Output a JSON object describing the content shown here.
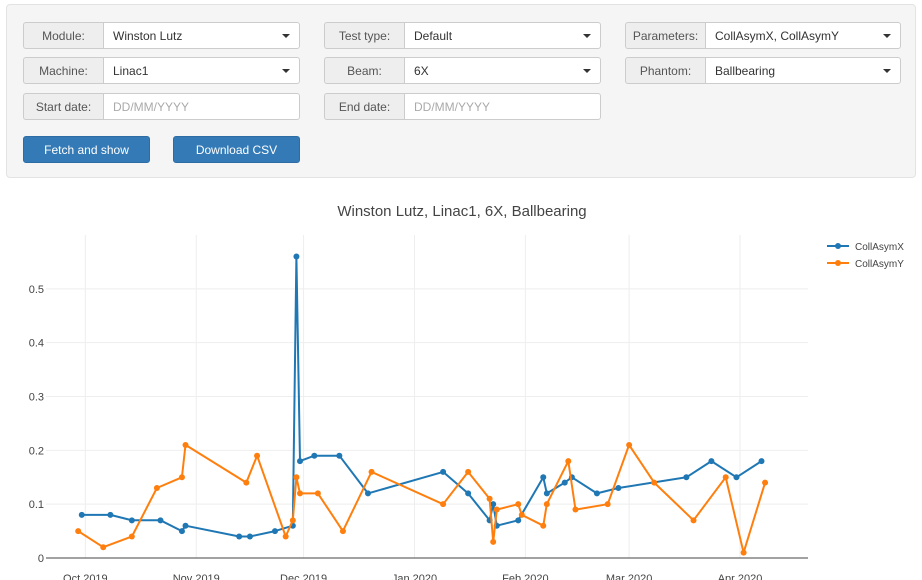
{
  "form": {
    "module": {
      "label": "Module:",
      "value": "Winston Lutz"
    },
    "test_type": {
      "label": "Test type:",
      "value": "Default"
    },
    "parameters": {
      "label": "Parameters:",
      "value": "CollAsymX, CollAsymY"
    },
    "machine": {
      "label": "Machine:",
      "value": "Linac1"
    },
    "beam": {
      "label": "Beam:",
      "value": "6X"
    },
    "phantom": {
      "label": "Phantom:",
      "value": "Ballbearing"
    },
    "start_date": {
      "label": "Start date:",
      "placeholder": "DD/MM/YYYY"
    },
    "end_date": {
      "label": "End date:",
      "placeholder": "DD/MM/YYYY"
    },
    "fetch_label": "Fetch and show",
    "download_label": "Download CSV"
  },
  "chart_data": {
    "type": "line",
    "title": "Winston Lutz, Linac1, 6X, Ballbearing",
    "xlabel": "",
    "ylabel": "",
    "ylim": [
      0,
      0.6
    ],
    "yticks": [
      0,
      0.1,
      0.2,
      0.3,
      0.4,
      0.5
    ],
    "ytick_labels": [
      "0",
      "0.1",
      "0.2",
      "0.3",
      "0.4",
      "0.5"
    ],
    "xlim": [
      "2019-09-20",
      "2020-04-20"
    ],
    "xticks": [
      "2019-10-01",
      "2019-11-01",
      "2019-12-01",
      "2020-01-01",
      "2020-02-01",
      "2020-03-01",
      "2020-04-01"
    ],
    "xtick_labels": [
      "Oct 2019",
      "Nov 2019",
      "Dec 2019",
      "Jan 2020",
      "Feb 2020",
      "Mar 2020",
      "Apr 2020"
    ],
    "grid": true,
    "legend_position": "top-right",
    "series": [
      {
        "name": "CollAsymX",
        "color": "#1f77b4",
        "points": [
          [
            "2019-09-30",
            0.08
          ],
          [
            "2019-10-08",
            0.08
          ],
          [
            "2019-10-14",
            0.07
          ],
          [
            "2019-10-22",
            0.07
          ],
          [
            "2019-10-28",
            0.05
          ],
          [
            "2019-10-29",
            0.06
          ],
          [
            "2019-11-13",
            0.04
          ],
          [
            "2019-11-16",
            0.04
          ],
          [
            "2019-11-23",
            0.05
          ],
          [
            "2019-11-28",
            0.06
          ],
          [
            "2019-11-29",
            0.56
          ],
          [
            "2019-11-30",
            0.18
          ],
          [
            "2019-12-04",
            0.19
          ],
          [
            "2019-12-11",
            0.19
          ],
          [
            "2019-12-19",
            0.12
          ],
          [
            "2020-01-09",
            0.16
          ],
          [
            "2020-01-16",
            0.12
          ],
          [
            "2020-01-22",
            0.07
          ],
          [
            "2020-01-23",
            0.1
          ],
          [
            "2020-01-24",
            0.06
          ],
          [
            "2020-01-30",
            0.07
          ],
          [
            "2020-02-06",
            0.15
          ],
          [
            "2020-02-07",
            0.12
          ],
          [
            "2020-02-12",
            0.14
          ],
          [
            "2020-02-14",
            0.15
          ],
          [
            "2020-02-21",
            0.12
          ],
          [
            "2020-02-27",
            0.13
          ],
          [
            "2020-03-17",
            0.15
          ],
          [
            "2020-03-24",
            0.18
          ],
          [
            "2020-03-31",
            0.15
          ],
          [
            "2020-04-07",
            0.18
          ]
        ]
      },
      {
        "name": "CollAsymY",
        "color": "#ff7f0e",
        "points": [
          [
            "2019-09-29",
            0.05
          ],
          [
            "2019-10-06",
            0.02
          ],
          [
            "2019-10-14",
            0.04
          ],
          [
            "2019-10-21",
            0.13
          ],
          [
            "2019-10-28",
            0.15
          ],
          [
            "2019-10-29",
            0.21
          ],
          [
            "2019-11-15",
            0.14
          ],
          [
            "2019-11-18",
            0.19
          ],
          [
            "2019-11-26",
            0.04
          ],
          [
            "2019-11-28",
            0.07
          ],
          [
            "2019-11-29",
            0.15
          ],
          [
            "2019-11-30",
            0.12
          ],
          [
            "2019-12-05",
            0.12
          ],
          [
            "2019-12-12",
            0.05
          ],
          [
            "2019-12-20",
            0.16
          ],
          [
            "2020-01-09",
            0.1
          ],
          [
            "2020-01-16",
            0.16
          ],
          [
            "2020-01-22",
            0.11
          ],
          [
            "2020-01-23",
            0.03
          ],
          [
            "2020-01-24",
            0.09
          ],
          [
            "2020-01-30",
            0.1
          ],
          [
            "2020-01-31",
            0.08
          ],
          [
            "2020-02-06",
            0.06
          ],
          [
            "2020-02-07",
            0.1
          ],
          [
            "2020-02-13",
            0.18
          ],
          [
            "2020-02-15",
            0.09
          ],
          [
            "2020-02-24",
            0.1
          ],
          [
            "2020-03-01",
            0.21
          ],
          [
            "2020-03-08",
            0.14
          ],
          [
            "2020-03-19",
            0.07
          ],
          [
            "2020-03-28",
            0.15
          ],
          [
            "2020-04-02",
            0.01
          ],
          [
            "2020-04-08",
            0.14
          ]
        ]
      }
    ]
  }
}
